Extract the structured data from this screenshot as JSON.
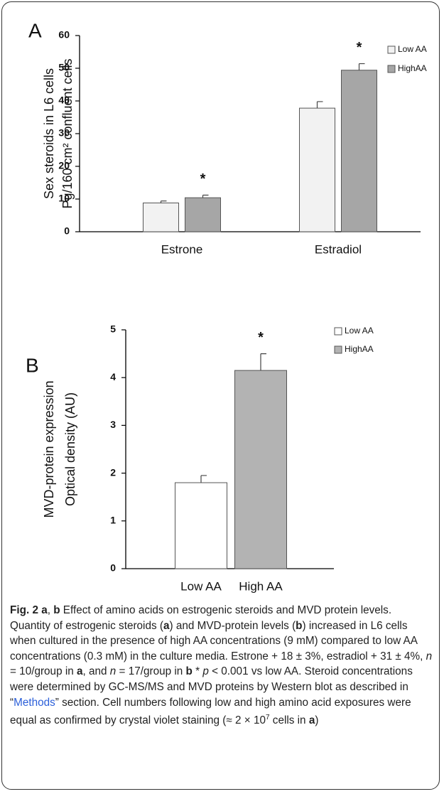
{
  "chart_data": [
    {
      "type": "bar",
      "label": "A",
      "ylabel": [
        "Sex steroids  in L6 cells",
        "Pg/160  cm² confluent cells"
      ],
      "categories": [
        "Estrone",
        "Estradiol"
      ],
      "series": [
        {
          "name": "Low AA",
          "color": "#f2f2f2",
          "values": [
            8.8,
            37.8
          ],
          "errors": [
            0.6,
            2.0
          ]
        },
        {
          "name": "HighAA",
          "color": "#a6a6a6",
          "values": [
            10.4,
            49.4
          ],
          "errors": [
            0.8,
            2.0
          ],
          "marks": [
            "*",
            "*"
          ]
        }
      ],
      "ylim": [
        0,
        60
      ],
      "yticks": [
        0,
        10,
        20,
        30,
        40,
        50,
        60
      ],
      "legend": "upper right"
    },
    {
      "type": "bar",
      "label": "B",
      "ylabel": [
        "MVD-protein expression",
        "Optical density (AU)"
      ],
      "categories": [
        "Low AA",
        "High AA"
      ],
      "series": [
        {
          "name": "Low AA",
          "color": "#ffffff",
          "values": [
            1.8,
            null
          ],
          "errors": [
            0.15,
            null
          ]
        },
        {
          "name": "HighAA",
          "color": "#b3b3b3",
          "values": [
            null,
            4.15
          ],
          "errors": [
            null,
            0.35
          ],
          "marks": [
            null,
            "*"
          ]
        }
      ],
      "ylim": [
        0,
        5
      ],
      "yticks": [
        0,
        1,
        2,
        3,
        4,
        5
      ],
      "legend": "upper right"
    }
  ],
  "caption": [
    "Fig. 2 a",
    ", ",
    "b",
    " Effect of amino acids on estrogenic steroids and MVD protein levels. Quantity of estrogenic steroids (",
    "a",
    ") and MVD-protein levels (",
    "b",
    ") increased in L6 cells when cultured in the presence of high AA concentrations (9 mM) compared to low AA concentrations (0.3 mM) in the culture media. Estrone + 18 ± 3%, estradiol + 31 ± 4%, ",
    "n",
    " = 10/group in ",
    "a",
    ", and ",
    "n",
    " = 17/group in ",
    "b",
    " * ",
    "p",
    " < 0.001 vs low AA. Steroid concentrations were determined by GC-MS/MS and MVD proteins by Western blot as described in “",
    "Methods",
    "” section. Cell numbers following low and high amino acid exposures were equal as confirmed by crystal violet staining (≈ 2 × 10",
    "7",
    " cells in ",
    "a",
    ")"
  ]
}
